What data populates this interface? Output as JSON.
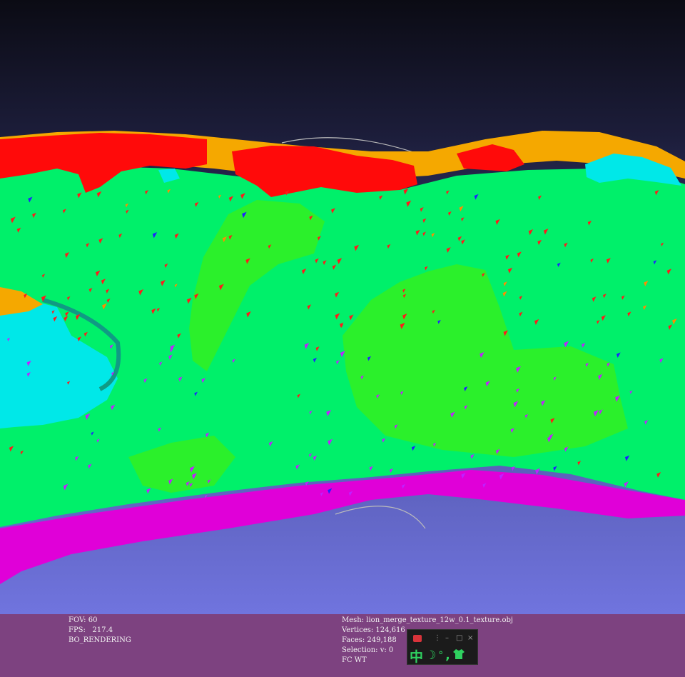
{
  "viewer": {
    "left_info": {
      "fov": "FOV: 60",
      "fps": "FPS:   217.4",
      "mode": "BO_RENDERING"
    },
    "right_info": {
      "mesh": "Mesh: lion_merge_texture_12w_0.1_texture.obj",
      "vertices": "Vertices: 124,616",
      "faces": "Faces: 249,188",
      "selection": "Selection: v: 0",
      "flags": "FC WT"
    }
  },
  "ime_toolbar": {
    "mode_char": "中",
    "moon_glyph": "☽",
    "degree_glyph": "°",
    "comma_glyph": ",",
    "shirt_icon": "shirt-icon",
    "minimize_label": "–",
    "restore_label": "□",
    "close_label": "×",
    "options_label": "⋮"
  },
  "colors": {
    "mesh_green": "#00f06a",
    "mesh_red": "#ff0a0a",
    "mesh_magenta": "#e000d8",
    "mesh_cyan": "#00e8e8",
    "mesh_orange": "#f5a800",
    "info_bar": "#7d4280",
    "ime_green": "#2fd160"
  }
}
